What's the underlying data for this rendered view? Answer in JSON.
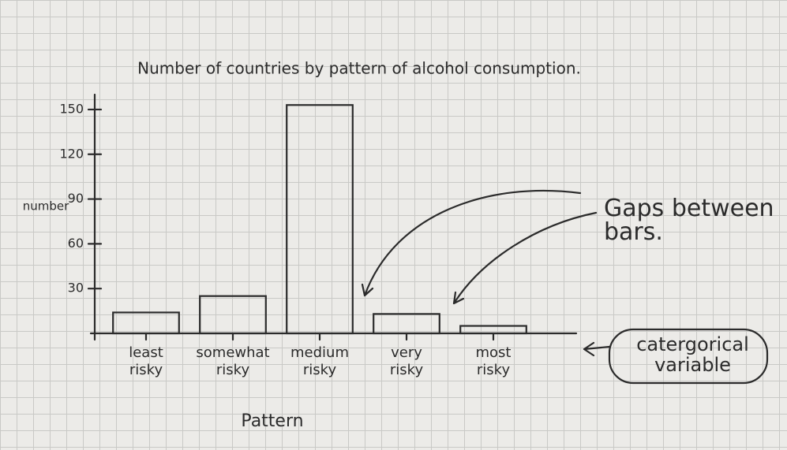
{
  "chart_data": {
    "type": "bar",
    "title": "Number of countries by pattern of alcohol consumption.",
    "ylabel": "number",
    "xlabel": "Pattern",
    "categories": [
      "least risky",
      "somewhat risky",
      "medium risky",
      "very risky",
      "most risky"
    ],
    "values": [
      14,
      25,
      153,
      13,
      5
    ],
    "color": "#2b2b2b",
    "ylim": [
      0,
      160
    ],
    "yticks": [
      30,
      60,
      90,
      120,
      150
    ],
    "grid": false,
    "annotations": [
      "Gaps between bars.",
      "catergorical variable"
    ]
  }
}
